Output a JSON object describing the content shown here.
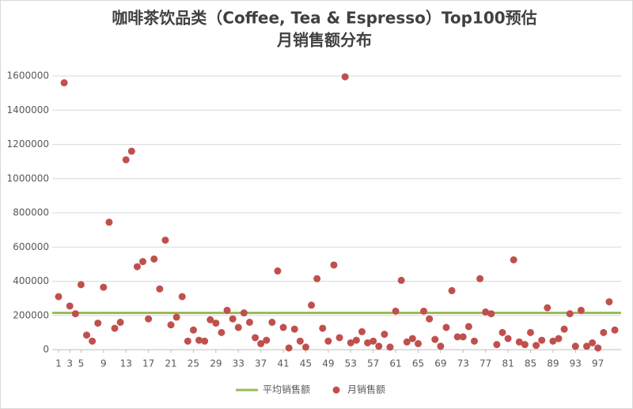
{
  "chart_data": {
    "type": "scatter",
    "title": [
      "咖啡茶饮品类（Coffee, Tea & Espresso）Top100预估",
      "月销售额分布"
    ],
    "x": [
      1,
      2,
      3,
      4,
      5,
      6,
      7,
      8,
      9,
      10,
      11,
      12,
      13,
      14,
      15,
      16,
      17,
      18,
      19,
      20,
      21,
      22,
      23,
      24,
      25,
      26,
      27,
      28,
      29,
      30,
      31,
      32,
      33,
      34,
      35,
      36,
      37,
      38,
      39,
      40,
      41,
      42,
      43,
      44,
      45,
      46,
      47,
      48,
      49,
      50,
      51,
      52,
      53,
      54,
      55,
      56,
      57,
      58,
      59,
      60,
      61,
      62,
      63,
      64,
      65,
      66,
      67,
      68,
      69,
      70,
      71,
      72,
      73,
      74,
      75,
      76,
      77,
      78,
      79,
      80,
      81,
      82,
      83,
      84,
      85,
      86,
      87,
      88,
      89,
      90,
      91,
      92,
      93,
      94,
      95,
      96,
      97,
      98,
      99,
      100
    ],
    "series": [
      {
        "name": "月销售额",
        "color": "#c0504d",
        "values": [
          310000,
          1560000,
          255000,
          210000,
          380000,
          85000,
          50000,
          155000,
          365000,
          745000,
          125000,
          160000,
          1110000,
          1160000,
          485000,
          515000,
          180000,
          530000,
          355000,
          640000,
          145000,
          190000,
          310000,
          50000,
          115000,
          55000,
          50000,
          175000,
          155000,
          100000,
          230000,
          180000,
          130000,
          215000,
          160000,
          70000,
          35000,
          55000,
          160000,
          460000,
          130000,
          10000,
          120000,
          50000,
          15000,
          260000,
          415000,
          125000,
          50000,
          495000,
          70000,
          1595000,
          40000,
          55000,
          105000,
          40000,
          50000,
          20000,
          90000,
          15000,
          225000,
          405000,
          45000,
          65000,
          35000,
          225000,
          180000,
          60000,
          20000,
          130000,
          345000,
          75000,
          75000,
          135000,
          50000,
          415000,
          220000,
          210000,
          30000,
          100000,
          65000,
          525000,
          45000,
          30000,
          100000,
          25000,
          55000,
          245000,
          50000,
          65000,
          120000,
          210000,
          20000,
          230000,
          20000,
          40000,
          10000,
          100000,
          280000,
          115000
        ]
      }
    ],
    "average": {
      "name": "平均销售额",
      "value": 215000,
      "color": "#9bbb59"
    },
    "xlim": [
      1,
      100
    ],
    "xticks": [
      1,
      3,
      5,
      9,
      13,
      17,
      21,
      25,
      29,
      33,
      37,
      41,
      45,
      49,
      53,
      57,
      61,
      65,
      69,
      73,
      77,
      81,
      85,
      89,
      93,
      97
    ],
    "ylim": [
      0,
      1600000
    ],
    "yticks": [
      0,
      200000,
      400000,
      600000,
      800000,
      1000000,
      1200000,
      1400000,
      1600000
    ],
    "grid": true
  }
}
